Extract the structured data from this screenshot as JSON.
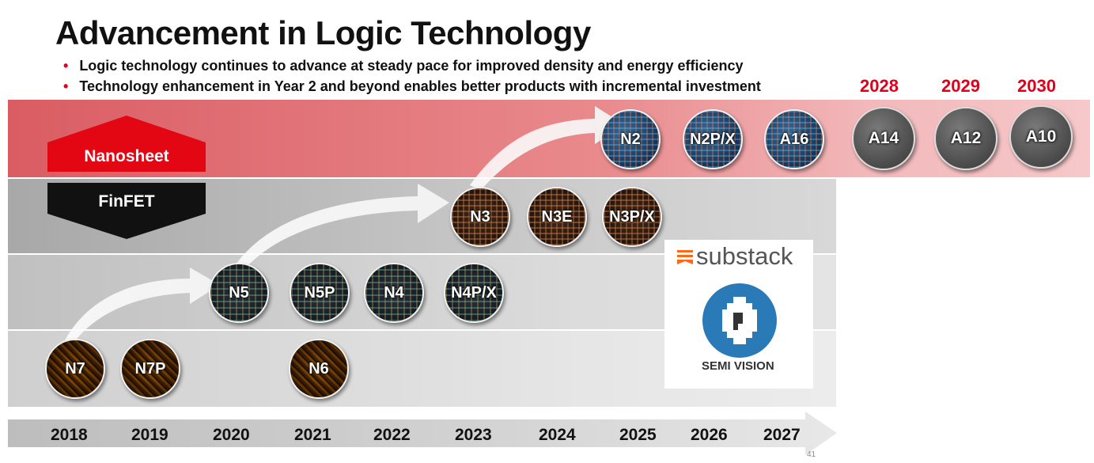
{
  "title": "Advancement in Logic Technology",
  "bullets": [
    "Logic technology continues to advance at steady pace for improved density and energy efficiency",
    "Technology enhancement in Year 2 and beyond enables better products with incremental investment"
  ],
  "bullet_marker": "•",
  "legend": {
    "nanosheet": "Nanosheet",
    "finfet": "FinFET"
  },
  "nodes": {
    "n7": "N7",
    "n7p": "N7P",
    "n6": "N6",
    "n5": "N5",
    "n5p": "N5P",
    "n4": "N4",
    "n4px": "N4P/X",
    "n3": "N3",
    "n3e": "N3E",
    "n3px": "N3P/X",
    "n2": "N2",
    "n2px": "N2P/X",
    "a16": "A16",
    "a14": "A14",
    "a12": "A12",
    "a10": "A10"
  },
  "future_years": [
    "2028",
    "2029",
    "2030"
  ],
  "timeline_years": [
    "2018",
    "2019",
    "2020",
    "2021",
    "2022",
    "2023",
    "2024",
    "2025",
    "2026",
    "2027"
  ],
  "watermark": {
    "brand": "substack",
    "org": "SEMI VISION"
  },
  "page_number": "41",
  "colors": {
    "accent_red": "#e0001a",
    "nanosheet_red": "#e30613",
    "finfet_black": "#111111"
  }
}
